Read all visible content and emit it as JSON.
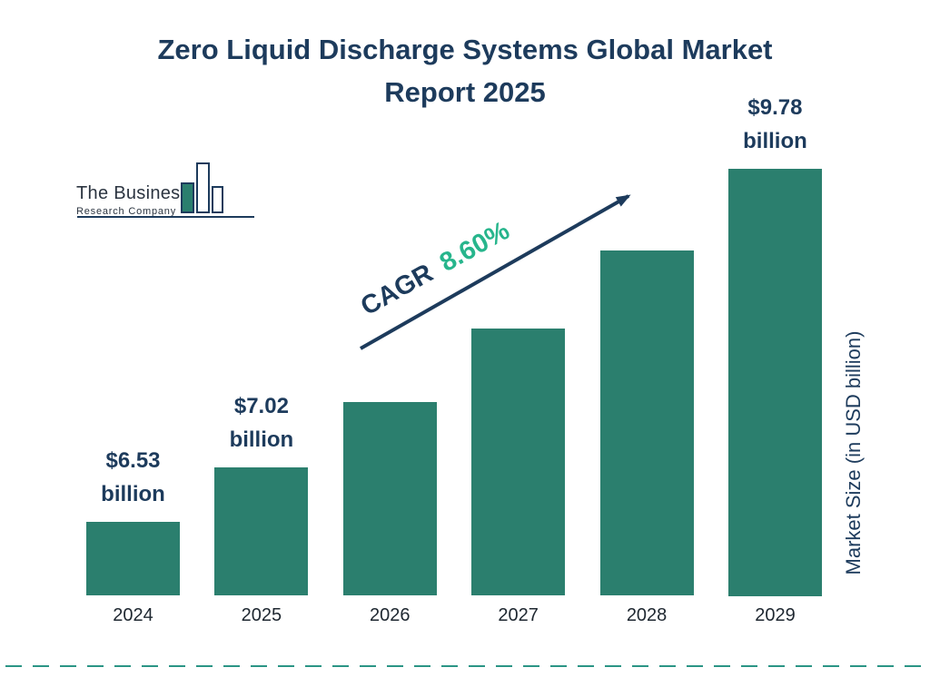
{
  "title": "Zero Liquid Discharge Systems Global Market Report 2025",
  "logo": {
    "line1": "The Business",
    "line2": "Research Company"
  },
  "cagr": {
    "prefix": "CAGR",
    "value": "8.60%"
  },
  "colors": {
    "navy": "#1d3b5c",
    "bar": "#2b7f6e",
    "green": "#27b58c",
    "dash": "#2b9585"
  },
  "chart_data": {
    "type": "bar",
    "title": "Zero Liquid Discharge Systems Global Market Report 2025",
    "categories": [
      "2024",
      "2025",
      "2026",
      "2027",
      "2028",
      "2029"
    ],
    "values": [
      6.53,
      7.02,
      7.62,
      8.28,
      8.99,
      9.78
    ],
    "unit": "USD billion",
    "xlabel": "",
    "ylabel": "Market Size (in USD billion)",
    "cagr_percent": "8.60%",
    "value_labels": [
      {
        "amount": "$6.53",
        "unit": "billion"
      },
      {
        "amount": "$7.02",
        "unit": "billion"
      },
      null,
      null,
      null,
      {
        "amount": "$9.78",
        "unit": "billion"
      }
    ],
    "grid": false,
    "legend_position": "none"
  }
}
